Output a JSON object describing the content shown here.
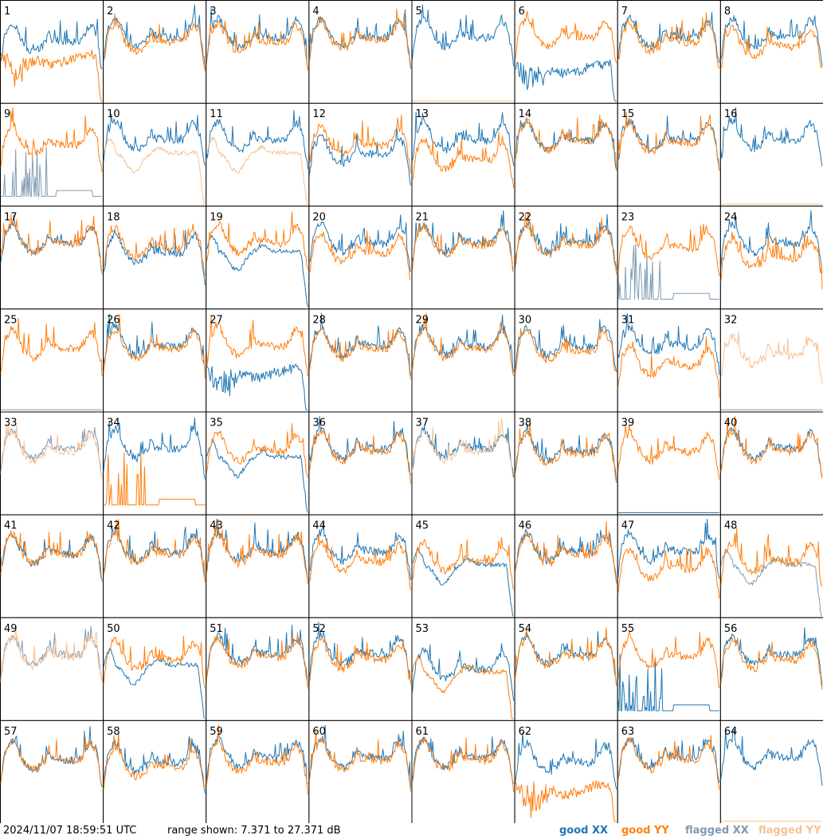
{
  "footer": {
    "timestamp": "2024/11/07 18:59:51 UTC",
    "range_text": "range shown: 7.371 to 27.371 dB"
  },
  "legend": [
    {
      "label": "good XX",
      "color": "#1f77b4"
    },
    {
      "label": "good YY",
      "color": "#ff7f0e"
    },
    {
      "label": "flagged XX",
      "color": "#7f9bb5"
    },
    {
      "label": "flagged YY",
      "color": "#f9c193"
    }
  ],
  "chart_data": {
    "type": "line",
    "layout": "8x8 small multiples, one panel per tile",
    "ylim_db": [
      7.371,
      27.371
    ],
    "series_names": [
      "good XX",
      "good YY",
      "flagged XX",
      "flagged YY"
    ],
    "colors": {
      "good_xx": "#1f77b4",
      "good_yy": "#ff7f0e",
      "flagged_xx": "#7f9bb5",
      "flagged_yy": "#f9c193"
    },
    "panels": [
      {
        "label": "1",
        "xx": "good",
        "yy": "good",
        "xx_profile": "normal",
        "yy_profile": "dropout",
        "xx_level": 21,
        "yy_level": 17
      },
      {
        "label": "2",
        "xx": "good",
        "yy": "good",
        "xx_profile": "normal",
        "yy_profile": "normal",
        "xx_level": 22,
        "yy_level": 21
      },
      {
        "label": "3",
        "xx": "good",
        "yy": "good",
        "xx_profile": "normal",
        "yy_profile": "normal",
        "xx_level": 22,
        "yy_level": 21
      },
      {
        "label": "4",
        "xx": "good",
        "yy": "good",
        "xx_profile": "normal",
        "yy_profile": "normal",
        "xx_level": 22,
        "yy_level": 21.5
      },
      {
        "label": "5",
        "xx": "good",
        "yy": "flagged",
        "xx_profile": "normal",
        "yy_profile": "flat",
        "xx_level": 22,
        "yy_level": 7.4
      },
      {
        "label": "6",
        "xx": "good",
        "yy": "good",
        "xx_profile": "dropout",
        "yy_profile": "normal",
        "xx_level": 15,
        "yy_level": 22
      },
      {
        "label": "7",
        "xx": "good",
        "yy": "good",
        "xx_profile": "normal",
        "yy_profile": "normal",
        "xx_level": 22,
        "yy_level": 21
      },
      {
        "label": "8",
        "xx": "good",
        "yy": "good",
        "xx_profile": "normal",
        "yy_profile": "normal",
        "xx_level": 22,
        "yy_level": 20
      },
      {
        "label": "9",
        "xx": "flagged",
        "yy": "good",
        "xx_profile": "spiky_low",
        "yy_profile": "normal",
        "xx_level": 9,
        "yy_level": 21
      },
      {
        "label": "10",
        "xx": "good",
        "yy": "flagged",
        "xx_profile": "normal",
        "yy_profile": "low_shape",
        "xx_level": 22,
        "yy_level": 18
      },
      {
        "label": "11",
        "xx": "good",
        "yy": "flagged",
        "xx_profile": "normal",
        "yy_profile": "low_shape",
        "xx_level": 22,
        "yy_level": 18
      },
      {
        "label": "12",
        "xx": "good",
        "yy": "good",
        "xx_profile": "normal",
        "yy_profile": "normal",
        "xx_level": 19,
        "yy_level": 21
      },
      {
        "label": "13",
        "xx": "good",
        "yy": "good",
        "xx_profile": "normal",
        "yy_profile": "normal",
        "xx_level": 22,
        "yy_level": 18
      },
      {
        "label": "14",
        "xx": "good",
        "yy": "good",
        "xx_profile": "normal",
        "yy_profile": "normal",
        "xx_level": 22,
        "yy_level": 22
      },
      {
        "label": "15",
        "xx": "good",
        "yy": "good",
        "xx_profile": "normal",
        "yy_profile": "normal",
        "xx_level": 22,
        "yy_level": 21.5
      },
      {
        "label": "16",
        "xx": "good",
        "yy": "flagged",
        "xx_profile": "normal",
        "yy_profile": "flat",
        "xx_level": 22,
        "yy_level": 7.4
      },
      {
        "label": "17",
        "xx": "good",
        "yy": "good",
        "xx_profile": "normal",
        "yy_profile": "normal",
        "xx_level": 22,
        "yy_level": 22
      },
      {
        "label": "18",
        "xx": "good",
        "yy": "good",
        "xx_profile": "normal",
        "yy_profile": "normal",
        "xx_level": 20,
        "yy_level": 21
      },
      {
        "label": "19",
        "xx": "good",
        "yy": "good",
        "xx_profile": "low_shape",
        "yy_profile": "normal",
        "xx_level": 19,
        "yy_level": 22
      },
      {
        "label": "20",
        "xx": "good",
        "yy": "good",
        "xx_profile": "normal",
        "yy_profile": "normal",
        "xx_level": 22,
        "yy_level": 20
      },
      {
        "label": "21",
        "xx": "good",
        "yy": "good",
        "xx_profile": "normal",
        "yy_profile": "normal",
        "xx_level": 22,
        "yy_level": 21.5
      },
      {
        "label": "22",
        "xx": "good",
        "yy": "good",
        "xx_profile": "normal",
        "yy_profile": "normal",
        "xx_level": 22,
        "yy_level": 21.5
      },
      {
        "label": "23",
        "xx": "flagged",
        "yy": "good",
        "xx_profile": "spiky_low",
        "yy_profile": "normal",
        "xx_level": 9,
        "yy_level": 21
      },
      {
        "label": "24",
        "xx": "good",
        "yy": "good",
        "xx_profile": "normal",
        "yy_profile": "normal",
        "xx_level": 22,
        "yy_level": 19
      },
      {
        "label": "25",
        "xx": "flagged",
        "yy": "good",
        "xx_profile": "flat",
        "yy_profile": "normal",
        "xx_level": 7.4,
        "yy_level": 21.5
      },
      {
        "label": "26",
        "xx": "good",
        "yy": "good",
        "xx_profile": "normal",
        "yy_profile": "normal",
        "xx_level": 22,
        "yy_level": 21.5
      },
      {
        "label": "27",
        "xx": "good",
        "yy": "good",
        "xx_profile": "dropout",
        "yy_profile": "normal",
        "xx_level": 16,
        "yy_level": 22
      },
      {
        "label": "28",
        "xx": "good",
        "yy": "good",
        "xx_profile": "normal",
        "yy_profile": "normal",
        "xx_level": 22,
        "yy_level": 21.5
      },
      {
        "label": "29",
        "xx": "good",
        "yy": "good",
        "xx_profile": "normal",
        "yy_profile": "normal",
        "xx_level": 22,
        "yy_level": 21.5
      },
      {
        "label": "30",
        "xx": "good",
        "yy": "good",
        "xx_profile": "normal",
        "yy_profile": "normal",
        "xx_level": 22,
        "yy_level": 21
      },
      {
        "label": "31",
        "xx": "good",
        "yy": "good",
        "xx_profile": "normal",
        "yy_profile": "normal",
        "xx_level": 22,
        "yy_level": 18
      },
      {
        "label": "32",
        "xx": "flagged",
        "yy": "flagged",
        "xx_profile": "flat",
        "yy_profile": "normal",
        "xx_level": 7.4,
        "yy_level": 20
      },
      {
        "label": "33",
        "xx": "flagged",
        "yy": "flagged",
        "xx_profile": "normal",
        "yy_profile": "normal",
        "xx_level": 22,
        "yy_level": 21.5
      },
      {
        "label": "34",
        "xx": "good",
        "yy": "good",
        "xx_profile": "normal",
        "yy_profile": "spiky_low",
        "xx_level": 22,
        "yy_level": 9
      },
      {
        "label": "35",
        "xx": "good",
        "yy": "good",
        "xx_profile": "low_shape",
        "yy_profile": "normal",
        "xx_level": 19,
        "yy_level": 21.5
      },
      {
        "label": "36",
        "xx": "good",
        "yy": "good",
        "xx_profile": "normal",
        "yy_profile": "normal",
        "xx_level": 22,
        "yy_level": 21.5
      },
      {
        "label": "37",
        "xx": "good",
        "yy": "flagged",
        "xx_profile": "normal",
        "yy_profile": "normal",
        "xx_level": 22,
        "yy_level": 21.5
      },
      {
        "label": "38",
        "xx": "good",
        "yy": "good",
        "xx_profile": "normal",
        "yy_profile": "normal",
        "xx_level": 21.5,
        "yy_level": 21
      },
      {
        "label": "39",
        "xx": "good",
        "yy": "good",
        "xx_profile": "flat",
        "yy_profile": "normal",
        "xx_level": 7.4,
        "yy_level": 21.5
      },
      {
        "label": "40",
        "xx": "good",
        "yy": "good",
        "xx_profile": "normal",
        "yy_profile": "normal",
        "xx_level": 22,
        "yy_level": 21.5
      },
      {
        "label": "41",
        "xx": "good",
        "yy": "good",
        "xx_profile": "normal",
        "yy_profile": "normal",
        "xx_level": 21.5,
        "yy_level": 21.5
      },
      {
        "label": "42",
        "xx": "good",
        "yy": "good",
        "xx_profile": "normal",
        "yy_profile": "normal",
        "xx_level": 22,
        "yy_level": 21.5
      },
      {
        "label": "43",
        "xx": "good",
        "yy": "good",
        "xx_profile": "normal",
        "yy_profile": "normal",
        "xx_level": 22,
        "yy_level": 21.5
      },
      {
        "label": "44",
        "xx": "good",
        "yy": "good",
        "xx_profile": "normal",
        "yy_profile": "normal",
        "xx_level": 22,
        "yy_level": 20
      },
      {
        "label": "45",
        "xx": "good",
        "yy": "good",
        "xx_profile": "low_shape",
        "yy_profile": "normal",
        "xx_level": 18,
        "yy_level": 20
      },
      {
        "label": "46",
        "xx": "good",
        "yy": "good",
        "xx_profile": "normal",
        "yy_profile": "normal",
        "xx_level": 22,
        "yy_level": 21.5
      },
      {
        "label": "47",
        "xx": "good",
        "yy": "good",
        "xx_profile": "normal",
        "yy_profile": "normal",
        "xx_level": 22,
        "yy_level": 18.5
      },
      {
        "label": "48",
        "xx": "flagged",
        "yy": "good",
        "xx_profile": "low_shape",
        "yy_profile": "normal",
        "xx_level": 18,
        "yy_level": 20
      },
      {
        "label": "49",
        "xx": "flagged",
        "yy": "flagged",
        "xx_profile": "normal",
        "yy_profile": "normal",
        "xx_level": 22,
        "yy_level": 21.5
      },
      {
        "label": "50",
        "xx": "good",
        "yy": "good",
        "xx_profile": "low_shape",
        "yy_profile": "normal",
        "xx_level": 18.5,
        "yy_level": 21
      },
      {
        "label": "51",
        "xx": "good",
        "yy": "good",
        "xx_profile": "normal",
        "yy_profile": "normal",
        "xx_level": 22,
        "yy_level": 21.5
      },
      {
        "label": "52",
        "xx": "good",
        "yy": "good",
        "xx_profile": "normal",
        "yy_profile": "normal",
        "xx_level": 22,
        "yy_level": 21
      },
      {
        "label": "53",
        "xx": "good",
        "yy": "good",
        "xx_profile": "normal",
        "yy_profile": "low_shape",
        "xx_level": 19,
        "yy_level": 17
      },
      {
        "label": "54",
        "xx": "good",
        "yy": "good",
        "xx_profile": "normal",
        "yy_profile": "normal",
        "xx_level": 22,
        "yy_level": 21.5
      },
      {
        "label": "55",
        "xx": "good",
        "yy": "good",
        "xx_profile": "spiky_low",
        "yy_profile": "normal",
        "xx_level": 9,
        "yy_level": 21.5
      },
      {
        "label": "56",
        "xx": "good",
        "yy": "good",
        "xx_profile": "normal",
        "yy_profile": "normal",
        "xx_level": 22,
        "yy_level": 21
      },
      {
        "label": "57",
        "xx": "good",
        "yy": "good",
        "xx_profile": "normal",
        "yy_profile": "normal",
        "xx_level": 21.5,
        "yy_level": 21.5
      },
      {
        "label": "58",
        "xx": "good",
        "yy": "good",
        "xx_profile": "normal",
        "yy_profile": "normal",
        "xx_level": 21,
        "yy_level": 20
      },
      {
        "label": "59",
        "xx": "good",
        "yy": "good",
        "xx_profile": "normal",
        "yy_profile": "normal",
        "xx_level": 22,
        "yy_level": 21
      },
      {
        "label": "60",
        "xx": "good",
        "yy": "good",
        "xx_profile": "normal",
        "yy_profile": "normal",
        "xx_level": 22,
        "yy_level": 21.5
      },
      {
        "label": "61",
        "xx": "good",
        "yy": "good",
        "xx_profile": "normal",
        "yy_profile": "normal",
        "xx_level": 22,
        "yy_level": 21.5
      },
      {
        "label": "62",
        "xx": "good",
        "yy": "good",
        "xx_profile": "normal",
        "yy_profile": "dropout",
        "xx_level": 21,
        "yy_level": 15
      },
      {
        "label": "63",
        "xx": "good",
        "yy": "good",
        "xx_profile": "normal",
        "yy_profile": "normal",
        "xx_level": 22,
        "yy_level": 21.5
      },
      {
        "label": "64",
        "xx": "good",
        "yy": "flagged",
        "xx_profile": "normal",
        "yy_profile": "flat",
        "xx_level": 22,
        "yy_level": 7.4
      }
    ]
  }
}
